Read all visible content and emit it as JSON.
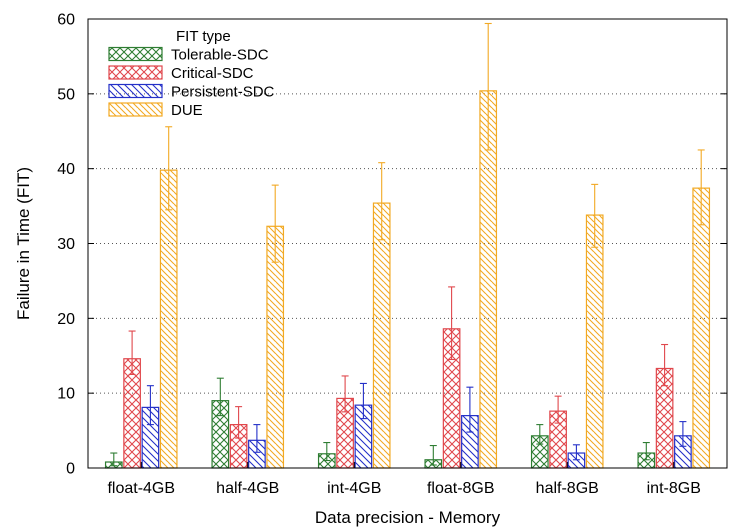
{
  "chart_data": {
    "type": "bar",
    "xlabel": "Data precision - Memory",
    "ylabel": "Failure in Time (FIT)",
    "ylim": [
      0,
      60
    ],
    "yticks": [
      "0",
      "10",
      "20",
      "30",
      "40",
      "50",
      "60"
    ],
    "grid": "horizontal dotted",
    "legend_title": "FIT type",
    "legend_position": "top-left",
    "categories": [
      "float-4GB",
      "half-4GB",
      "int-4GB",
      "float-8GB",
      "half-8GB",
      "int-8GB"
    ],
    "series": [
      {
        "name": "Tolerable-SDC",
        "color": "#2e7d32",
        "pattern": "crosshatch",
        "values": [
          0.8,
          9.0,
          1.9,
          1.1,
          4.3,
          2.0
        ],
        "err_low": [
          0.3,
          7.0,
          1.0,
          0.4,
          3.2,
          1.1
        ],
        "err_high": [
          2.0,
          12.0,
          3.4,
          3.0,
          5.8,
          3.4
        ]
      },
      {
        "name": "Critical-SDC",
        "color": "#e0474c",
        "pattern": "crosshatch",
        "values": [
          14.6,
          5.8,
          9.3,
          18.6,
          7.6,
          13.3
        ],
        "err_low": [
          12.5,
          4.0,
          7.5,
          14.5,
          6.0,
          11.0
        ],
        "err_high": [
          18.3,
          8.2,
          12.3,
          24.2,
          9.6,
          16.5
        ]
      },
      {
        "name": "Persistent-SDC",
        "color": "#2430c8",
        "pattern": "diagonal",
        "values": [
          8.1,
          3.7,
          8.4,
          7.0,
          2.0,
          4.3
        ],
        "err_low": [
          5.8,
          2.1,
          6.6,
          4.8,
          1.1,
          2.9
        ],
        "err_high": [
          11.0,
          5.8,
          11.3,
          10.8,
          3.1,
          6.2
        ]
      },
      {
        "name": "DUE",
        "color": "#f2a923",
        "pattern": "diagonal",
        "values": [
          39.8,
          32.3,
          35.4,
          50.4,
          33.8,
          37.4
        ],
        "err_low": [
          34.5,
          27.5,
          30.5,
          42.5,
          29.5,
          32.5
        ],
        "err_high": [
          45.6,
          37.8,
          40.8,
          59.4,
          37.9,
          42.5
        ]
      }
    ]
  }
}
